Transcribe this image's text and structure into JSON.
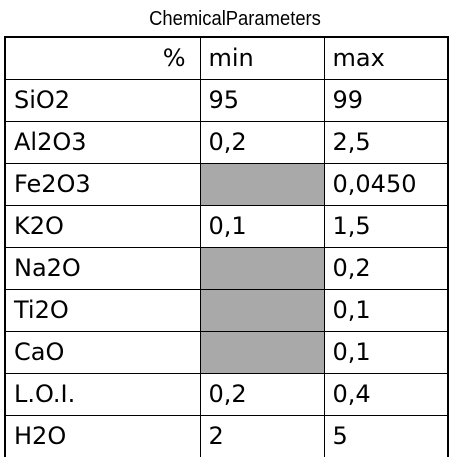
{
  "title": "ChemicalParameters",
  "table": {
    "header": [
      "%",
      "min",
      "max"
    ],
    "rows": [
      [
        "SiO2",
        "95",
        "99"
      ],
      [
        "Al2O3",
        "0,2",
        "2,5"
      ],
      [
        "Fe2O3",
        "",
        "0,0450"
      ],
      [
        "K2O",
        "0,1",
        "1,5"
      ],
      [
        "Na2O",
        "",
        "0,2"
      ],
      [
        "Ti2O",
        "",
        "0,1"
      ],
      [
        "CaO",
        "",
        "0,1"
      ],
      [
        "L.O.I.",
        "0,2",
        "0,4"
      ],
      [
        "H2O",
        "2",
        "5"
      ]
    ],
    "shaded_color": "#a9a9a9"
  }
}
